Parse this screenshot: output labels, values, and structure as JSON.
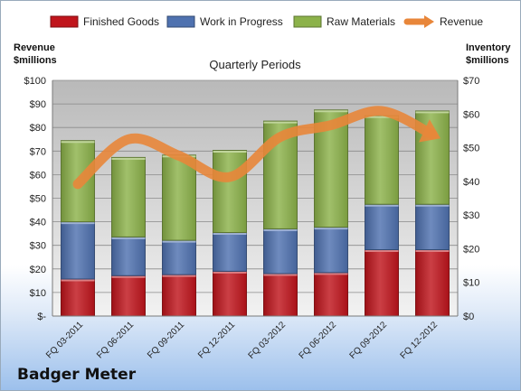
{
  "company": "Badger Meter",
  "chart_data": {
    "type": "bar",
    "stacked": true,
    "title": "Quarterly Periods",
    "ylabel_left": [
      "Revenue",
      "$millions"
    ],
    "ylabel_right": [
      "Inventory",
      "$millions"
    ],
    "categories": [
      "FQ 03-2011",
      "FQ 06-2011",
      "FQ 09-2011",
      "FQ 12-2011",
      "FQ 03-2012",
      "FQ 06-2012",
      "FQ 09-2012",
      "FQ 12-2012"
    ],
    "series": [
      {
        "name": "Finished Goods",
        "axis": "right",
        "color": "#c0151c",
        "values": [
          11,
          12,
          12.3,
          13.3,
          12.6,
          12.9,
          19.7,
          19.7
        ]
      },
      {
        "name": "Work in Progress",
        "axis": "right",
        "color": "#4f72b0",
        "values": [
          17,
          11.5,
          10.2,
          11.5,
          13.3,
          13.5,
          13.5,
          13.5
        ]
      },
      {
        "name": "Raw Materials",
        "axis": "right",
        "color": "#8cb24a",
        "values": [
          24.1,
          23.6,
          25.3,
          24.4,
          32.0,
          34.8,
          26.3,
          27.7
        ]
      },
      {
        "name": "Revenue",
        "axis": "left",
        "type": "line",
        "color": "#e8863a",
        "values": [
          56,
          75,
          68,
          59,
          76,
          81,
          87,
          77
        ]
      }
    ],
    "ylim_left": [
      0,
      100
    ],
    "ylim_right": [
      0,
      70
    ],
    "yticks_left": [
      "$-",
      "$10",
      "$20",
      "$30",
      "$40",
      "$50",
      "$60",
      "$70",
      "$80",
      "$90",
      "$100"
    ],
    "yticks_right": [
      "$0",
      "$10",
      "$20",
      "$30",
      "$40",
      "$50",
      "$60",
      "$70"
    ],
    "grid": true,
    "legend": "top"
  }
}
